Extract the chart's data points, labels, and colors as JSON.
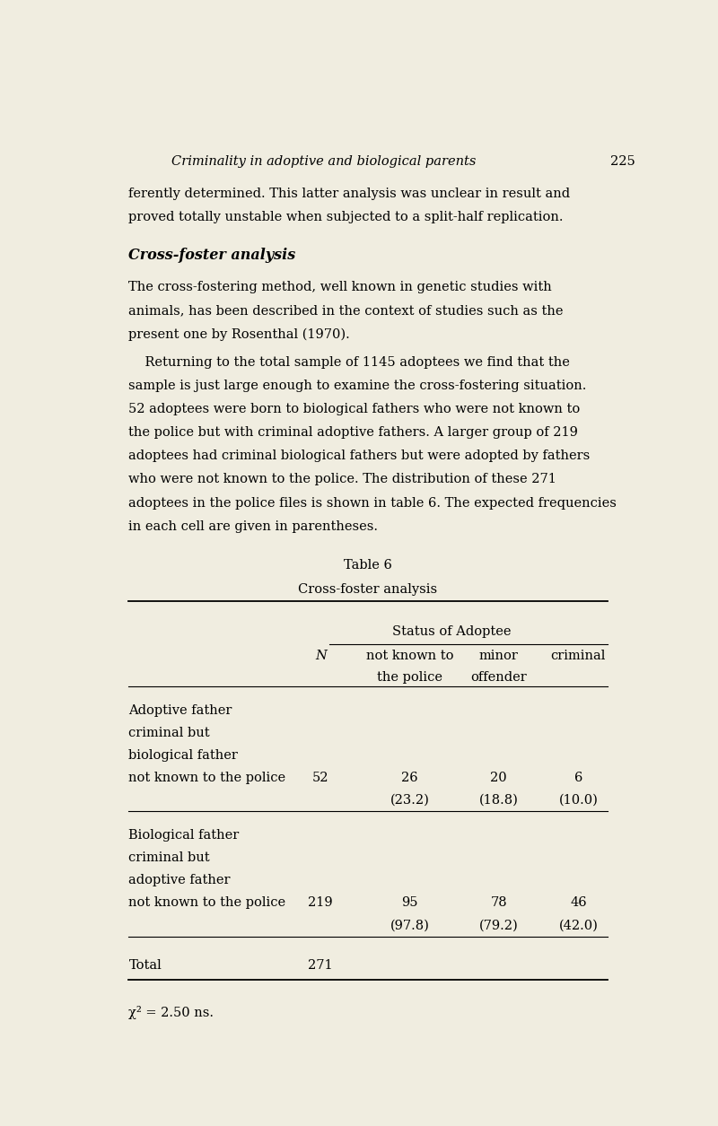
{
  "bg_color": "#f0ede0",
  "page_width": 8.0,
  "page_height": 12.55,
  "header_title": "Criminality in adoptive and biological parents",
  "header_page": "225",
  "body_text": [
    "ferently determined. This latter analysis was unclear in result and",
    "proved totally unstable when subjected to a split-half replication."
  ],
  "section_title": "Cross-foster analysis",
  "para1_lines": [
    "The cross-fostering method, well known in genetic studies with",
    "animals, has been described in the context of studies such as the",
    "present one by Rosenthal (1970)."
  ],
  "para2_lines": [
    "    Returning to the total sample of 1145 adoptees we find that the",
    "sample is just large enough to examine the cross-fostering situation.",
    "52 adoptees were born to biological fathers who were not known to",
    "the police but with criminal adoptive fathers. A larger group of 219",
    "adoptees had criminal biological fathers but were adopted by fathers",
    "who were not known to the police. The distribution of these 271",
    "adoptees in the police files is shown in table 6. The expected frequencies",
    "in each cell are given in parentheses."
  ],
  "table_title": "Table 6",
  "table_subtitle": "Cross-foster analysis",
  "col_header_main": "Status of Adoptee",
  "col_N": "N",
  "col1_line1": "not known to",
  "col1_line2": "the police",
  "col2_line1": "minor",
  "col2_line2": "offender",
  "col3": "criminal",
  "row1_label": [
    "Adoptive father",
    "criminal but",
    "biological father",
    "not known to the police"
  ],
  "row1_N": "52",
  "row1_c1": "26",
  "row1_c1_exp": "(23.2)",
  "row1_c2": "20",
  "row1_c2_exp": "(18.8)",
  "row1_c3": "6",
  "row1_c3_exp": "(10.0)",
  "row2_label": [
    "Biological father",
    "criminal but",
    "adoptive father",
    "not known to the police"
  ],
  "row2_N": "219",
  "row2_c1": "95",
  "row2_c1_exp": "(97.8)",
  "row2_c2": "78",
  "row2_c2_exp": "(79.2)",
  "row2_c3": "46",
  "row2_c3_exp": "(42.0)",
  "total_label": "Total",
  "total_N": "271",
  "footnote": "χ² = 2.50 ns."
}
